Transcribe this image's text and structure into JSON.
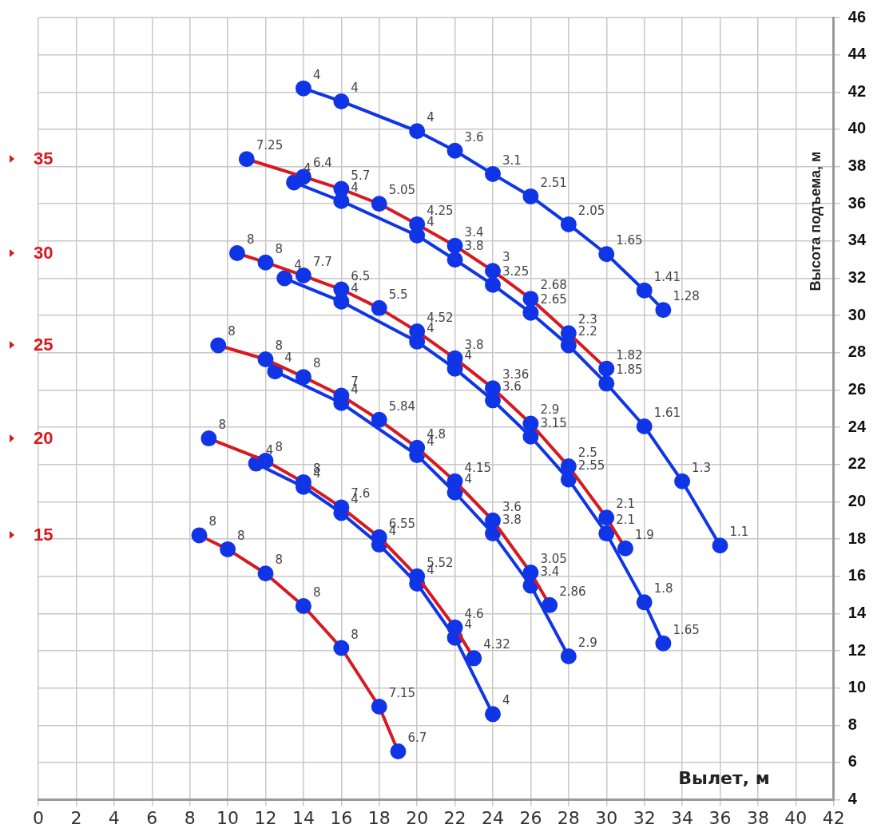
{
  "chart_data": {
    "type": "line",
    "xlabel": "Вылет, м",
    "ylabel": "Высота подъема, м",
    "xlim": [
      0,
      42
    ],
    "xticks": [
      0,
      2,
      4,
      6,
      8,
      10,
      12,
      14,
      16,
      18,
      20,
      22,
      24,
      26,
      28,
      30,
      32,
      34,
      36,
      38,
      40,
      42
    ],
    "ylim": [
      4,
      46
    ],
    "yticks": [
      4,
      6,
      8,
      10,
      12,
      14,
      16,
      18,
      20,
      22,
      24,
      26,
      28,
      30,
      32,
      34,
      36,
      38,
      40,
      42,
      44,
      46
    ],
    "grid": true,
    "legend": "left",
    "marker": "circle",
    "line_style": "solid",
    "series": [
      {
        "name": "15",
        "color": "#d71920",
        "colors": [
          "#1035e6",
          "#1035e6",
          "#1035e6",
          "#1035e6",
          "#1035e6",
          "#1035e6",
          "#1035e6"
        ],
        "x": [
          8.5,
          10,
          12,
          14,
          16,
          18,
          19
        ],
        "values": [
          18.2,
          17.45,
          16.15,
          14.4,
          12.15,
          9.0,
          6.6
        ]
      },
      {
        "name": "20",
        "color": "#d71920",
        "colors": [
          "#1035e6",
          "#1035e6",
          "#1035e6",
          "#1035e6",
          "#1035e6",
          "#1035e6",
          "#1035e6",
          "#1035e6"
        ],
        "x": [
          9,
          12,
          14,
          16,
          18,
          20,
          22,
          23
        ],
        "values": [
          23.4,
          22.2,
          21.05,
          19.7,
          18.1,
          16.0,
          13.25,
          11.6
        ]
      },
      {
        "color": "#1035e6",
        "x": [
          11.5,
          14,
          16,
          18,
          20,
          22,
          24
        ],
        "values": [
          22.05,
          20.8,
          19.4,
          17.7,
          15.6,
          12.7,
          8.6
        ]
      },
      {
        "name": "25",
        "color": "#d71920",
        "colors": [
          "#1035e6",
          "#1035e6",
          "#1035e6",
          "#1035e6",
          "#1035e6",
          "#1035e6",
          "#1035e6",
          "#1035e6",
          "#1035e6",
          "#1035e6"
        ],
        "x": [
          9.5,
          12,
          14,
          16,
          18,
          20,
          22,
          24,
          26,
          27
        ],
        "values": [
          28.4,
          27.65,
          26.7,
          25.7,
          24.4,
          22.9,
          21.1,
          19.0,
          16.2,
          14.45
        ]
      },
      {
        "color": "#1035e6",
        "x": [
          12.5,
          16,
          20,
          22,
          24,
          26,
          28
        ],
        "values": [
          27.0,
          25.3,
          22.5,
          20.5,
          18.3,
          15.5,
          11.7
        ]
      },
      {
        "name": "30",
        "color": "#d71920",
        "colors": [
          "#1035e6",
          "#1035e6",
          "#1035e6",
          "#1035e6",
          "#1035e6",
          "#1035e6",
          "#1035e6",
          "#1035e6",
          "#1035e6",
          "#1035e6",
          "#1035e6",
          "#1035e6"
        ],
        "x": [
          10.5,
          12,
          14,
          16,
          18,
          20,
          22,
          24,
          26,
          28,
          30,
          31
        ],
        "values": [
          33.35,
          32.85,
          32.15,
          31.4,
          30.4,
          29.15,
          27.7,
          26.1,
          24.2,
          21.9,
          19.15,
          17.5
        ]
      },
      {
        "color": "#1035e6",
        "x": [
          13,
          16,
          20,
          22,
          24,
          26,
          28,
          30,
          32,
          33
        ],
        "values": [
          32.0,
          30.75,
          28.6,
          27.15,
          25.45,
          23.5,
          21.2,
          18.3,
          14.6,
          12.4
        ]
      },
      {
        "name": "35",
        "color": "#d71920",
        "colors": [
          "#1035e6",
          "#1035e6",
          "#1035e6",
          "#1035e6",
          "#1035e6",
          "#1035e6",
          "#1035e6",
          "#1035e6",
          "#1035e6",
          "#1035e6"
        ],
        "x": [
          11,
          14,
          16,
          18,
          20,
          22,
          24,
          26,
          28,
          30
        ],
        "values": [
          38.4,
          37.45,
          36.8,
          36.0,
          34.9,
          33.75,
          32.4,
          30.9,
          29.05,
          27.15
        ]
      },
      {
        "color": "#1035e6",
        "x": [
          13.5,
          16,
          20,
          22,
          24,
          26,
          28,
          30,
          32,
          34,
          36
        ],
        "values": [
          37.15,
          36.15,
          34.3,
          33.0,
          31.65,
          30.15,
          28.4,
          26.35,
          24.05,
          21.1,
          17.65
        ]
      },
      {
        "color": "#1035e6",
        "x": [
          14,
          16,
          20,
          22,
          24,
          26,
          28,
          30,
          32,
          33
        ],
        "values": [
          42.2,
          41.5,
          39.9,
          38.85,
          37.6,
          36.4,
          34.9,
          33.3,
          31.35,
          30.3
        ]
      }
    ],
    "annotations": [
      {
        "text": "8",
        "x": 8.5,
        "y": 18.2
      },
      {
        "text": "8",
        "x": 10,
        "y": 17.45
      },
      {
        "text": "8",
        "x": 12,
        "y": 16.15
      },
      {
        "text": "8",
        "x": 14,
        "y": 14.4
      },
      {
        "text": "8",
        "x": 16,
        "y": 12.15
      },
      {
        "text": "7.15",
        "x": 18,
        "y": 9.0
      },
      {
        "text": "6.7",
        "x": 19,
        "y": 6.6
      },
      {
        "text": "8",
        "x": 9,
        "y": 23.4
      },
      {
        "text": "8",
        "x": 12,
        "y": 22.2
      },
      {
        "text": "8",
        "x": 14,
        "y": 21.05
      },
      {
        "text": "7.6",
        "x": 16,
        "y": 19.7
      },
      {
        "text": "6.55",
        "x": 18,
        "y": 18.1
      },
      {
        "text": "5.52",
        "x": 20,
        "y": 16.0
      },
      {
        "text": "4.6",
        "x": 22,
        "y": 13.25
      },
      {
        "text": "4.32",
        "x": 23,
        "y": 11.6
      },
      {
        "text": "4",
        "x": 11.5,
        "y": 22.05
      },
      {
        "text": "4",
        "x": 14,
        "y": 20.8
      },
      {
        "text": "4",
        "x": 16,
        "y": 19.4
      },
      {
        "text": "4",
        "x": 18,
        "y": 17.7
      },
      {
        "text": "4",
        "x": 20,
        "y": 15.6
      },
      {
        "text": "4",
        "x": 22,
        "y": 12.7
      },
      {
        "text": "4",
        "x": 24,
        "y": 8.6
      },
      {
        "text": "8",
        "x": 9.5,
        "y": 28.4
      },
      {
        "text": "8",
        "x": 12,
        "y": 27.65
      },
      {
        "text": "8",
        "x": 14,
        "y": 26.7
      },
      {
        "text": "7",
        "x": 16,
        "y": 25.7
      },
      {
        "text": "5.84",
        "x": 18,
        "y": 24.4
      },
      {
        "text": "4.8",
        "x": 20,
        "y": 22.9
      },
      {
        "text": "4.15",
        "x": 22,
        "y": 21.1
      },
      {
        "text": "3.6",
        "x": 24,
        "y": 19.0
      },
      {
        "text": "3.05",
        "x": 26,
        "y": 16.2
      },
      {
        "text": "2.86",
        "x": 27,
        "y": 14.45
      },
      {
        "text": "4",
        "x": 12.5,
        "y": 27.0
      },
      {
        "text": "4",
        "x": 16,
        "y": 25.3
      },
      {
        "text": "4",
        "x": 20,
        "y": 22.5
      },
      {
        "text": "4",
        "x": 22,
        "y": 20.5
      },
      {
        "text": "3.8",
        "x": 24,
        "y": 18.3
      },
      {
        "text": "3.4",
        "x": 26,
        "y": 15.5
      },
      {
        "text": "2.9",
        "x": 28,
        "y": 11.7
      },
      {
        "text": "8",
        "x": 10.5,
        "y": 33.35
      },
      {
        "text": "8",
        "x": 12,
        "y": 32.85
      },
      {
        "text": "7.7",
        "x": 14,
        "y": 32.15
      },
      {
        "text": "6.5",
        "x": 16,
        "y": 31.4
      },
      {
        "text": "5.5",
        "x": 18,
        "y": 30.4
      },
      {
        "text": "4.52",
        "x": 20,
        "y": 29.15
      },
      {
        "text": "3.8",
        "x": 22,
        "y": 27.7
      },
      {
        "text": "3.36",
        "x": 24,
        "y": 26.1
      },
      {
        "text": "2.9",
        "x": 26,
        "y": 24.2
      },
      {
        "text": "2.5",
        "x": 28,
        "y": 21.9
      },
      {
        "text": "2.1",
        "x": 30,
        "y": 19.15
      },
      {
        "text": "1.9",
        "x": 31,
        "y": 17.5
      },
      {
        "text": "4",
        "x": 13,
        "y": 32.0
      },
      {
        "text": "4",
        "x": 16,
        "y": 30.75
      },
      {
        "text": "4",
        "x": 20,
        "y": 28.6
      },
      {
        "text": "4",
        "x": 22,
        "y": 27.15
      },
      {
        "text": "3.6",
        "x": 24,
        "y": 25.45
      },
      {
        "text": "3.15",
        "x": 26,
        "y": 23.5
      },
      {
        "text": "2.55",
        "x": 28,
        "y": 21.2
      },
      {
        "text": "2.1",
        "x": 30,
        "y": 18.3
      },
      {
        "text": "1.8",
        "x": 32,
        "y": 14.6
      },
      {
        "text": "1.65",
        "x": 33,
        "y": 12.4
      },
      {
        "text": "7.25",
        "x": 11,
        "y": 38.4
      },
      {
        "text": "6.4",
        "x": 14,
        "y": 37.45
      },
      {
        "text": "5.7",
        "x": 16,
        "y": 36.8
      },
      {
        "text": "5.05",
        "x": 18,
        "y": 36.0
      },
      {
        "text": "4.25",
        "x": 20,
        "y": 34.9
      },
      {
        "text": "3.4",
        "x": 22,
        "y": 33.75
      },
      {
        "text": "3",
        "x": 24,
        "y": 32.4
      },
      {
        "text": "2.68",
        "x": 26,
        "y": 30.9
      },
      {
        "text": "2.3",
        "x": 28,
        "y": 29.05
      },
      {
        "text": "1.82",
        "x": 30,
        "y": 27.15
      },
      {
        "text": "4",
        "x": 13.5,
        "y": 37.15
      },
      {
        "text": "4",
        "x": 16,
        "y": 36.15
      },
      {
        "text": "4",
        "x": 20,
        "y": 34.3
      },
      {
        "text": "3.8",
        "x": 22,
        "y": 33.0
      },
      {
        "text": "3.25",
        "x": 24,
        "y": 31.65
      },
      {
        "text": "2.65",
        "x": 26,
        "y": 30.15
      },
      {
        "text": "2.2",
        "x": 28,
        "y": 28.4
      },
      {
        "text": "1.85",
        "x": 30,
        "y": 26.35
      },
      {
        "text": "1.61",
        "x": 32,
        "y": 24.05
      },
      {
        "text": "1.3",
        "x": 34,
        "y": 21.1
      },
      {
        "text": "1.1",
        "x": 36,
        "y": 17.65
      },
      {
        "text": "4",
        "x": 14,
        "y": 42.2
      },
      {
        "text": "4",
        "x": 16,
        "y": 41.5
      },
      {
        "text": "4",
        "x": 20,
        "y": 39.9
      },
      {
        "text": "3.6",
        "x": 22,
        "y": 38.85
      },
      {
        "text": "3.1",
        "x": 24,
        "y": 37.6
      },
      {
        "text": "2.51",
        "x": 26,
        "y": 36.4
      },
      {
        "text": "2.05",
        "x": 28,
        "y": 34.9
      },
      {
        "text": "1.65",
        "x": 30,
        "y": 33.3
      },
      {
        "text": "1.41",
        "x": 32,
        "y": 31.35
      },
      {
        "text": "1.28",
        "x": 33,
        "y": 30.3
      }
    ]
  }
}
